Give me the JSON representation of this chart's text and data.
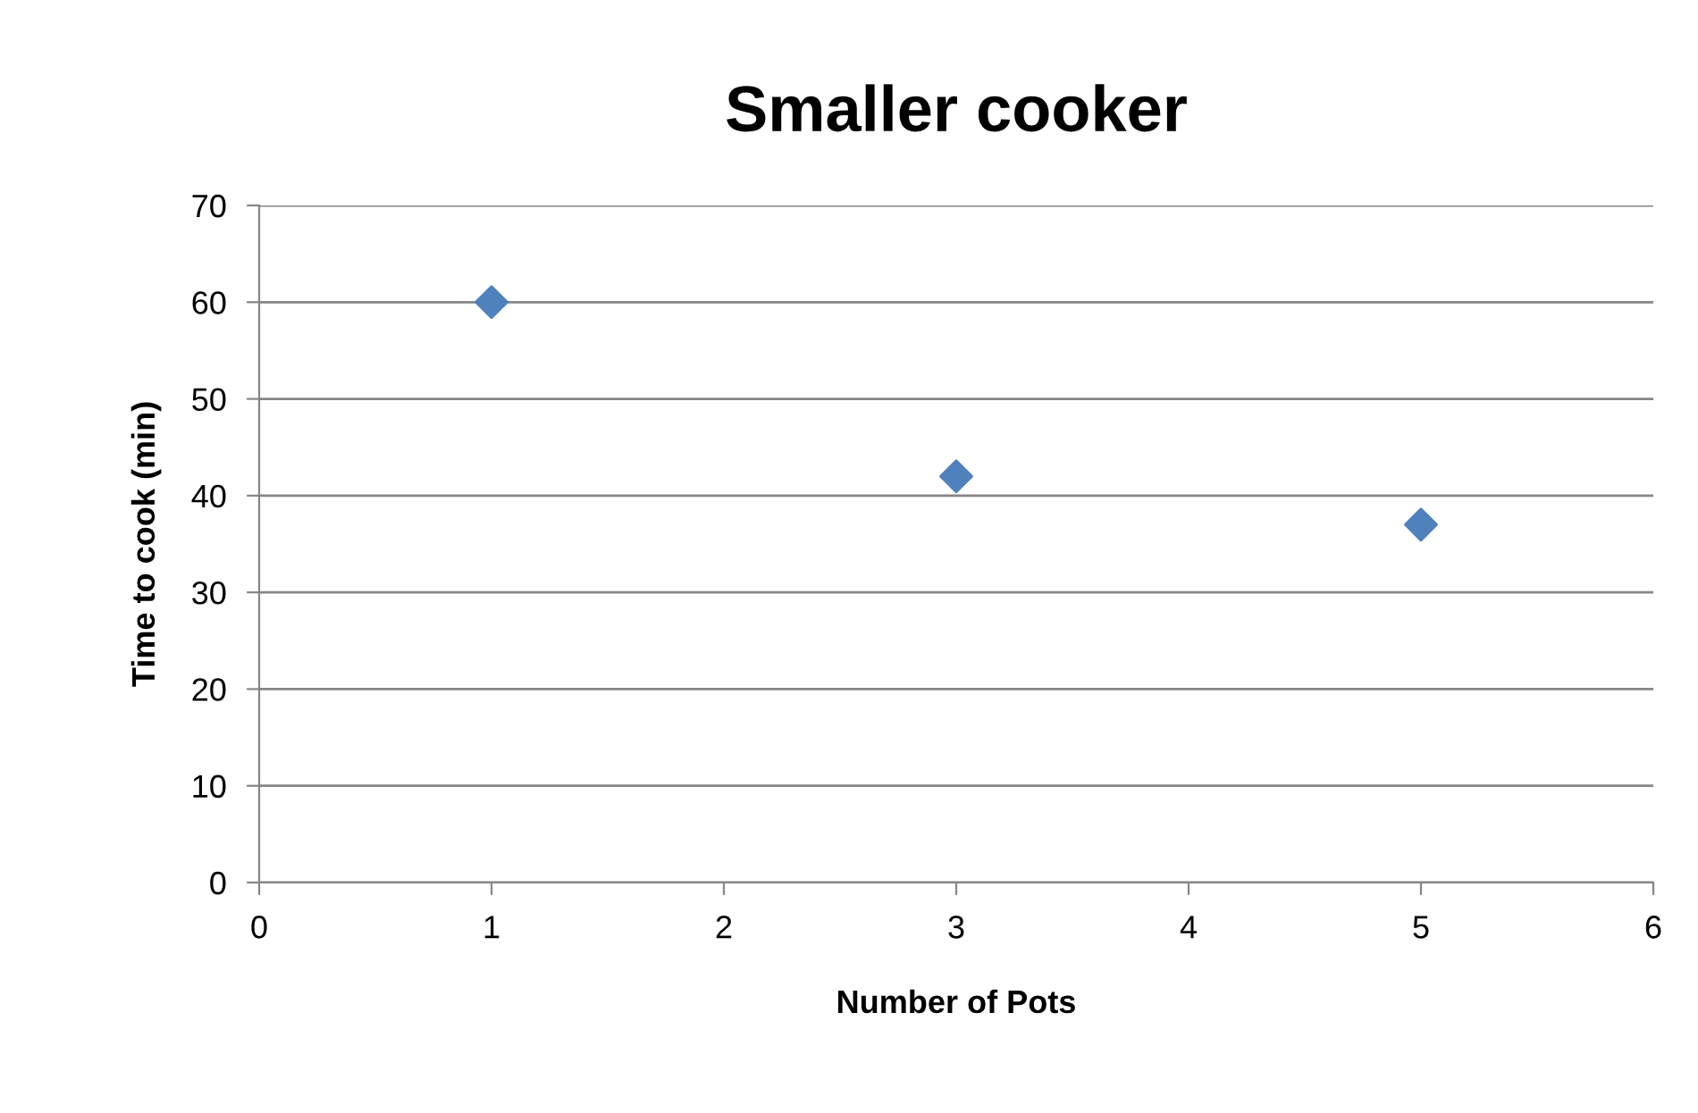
{
  "chart_data": {
    "type": "scatter",
    "title": "Smaller cooker",
    "xlabel": "Number of Pots",
    "ylabel": "Time to cook (min)",
    "x": [
      1,
      3,
      5
    ],
    "series": [
      {
        "color": "#4f81bd",
        "values": [
          60,
          42,
          37
        ]
      }
    ],
    "marker": "diamond",
    "xlim": [
      0,
      6
    ],
    "xticks": [
      0,
      1,
      2,
      3,
      4,
      5,
      6
    ],
    "ylim": [
      0,
      70
    ],
    "yticks": [
      0,
      10,
      20,
      30,
      40,
      50,
      60,
      70
    ],
    "grid": "y",
    "legend": false
  }
}
